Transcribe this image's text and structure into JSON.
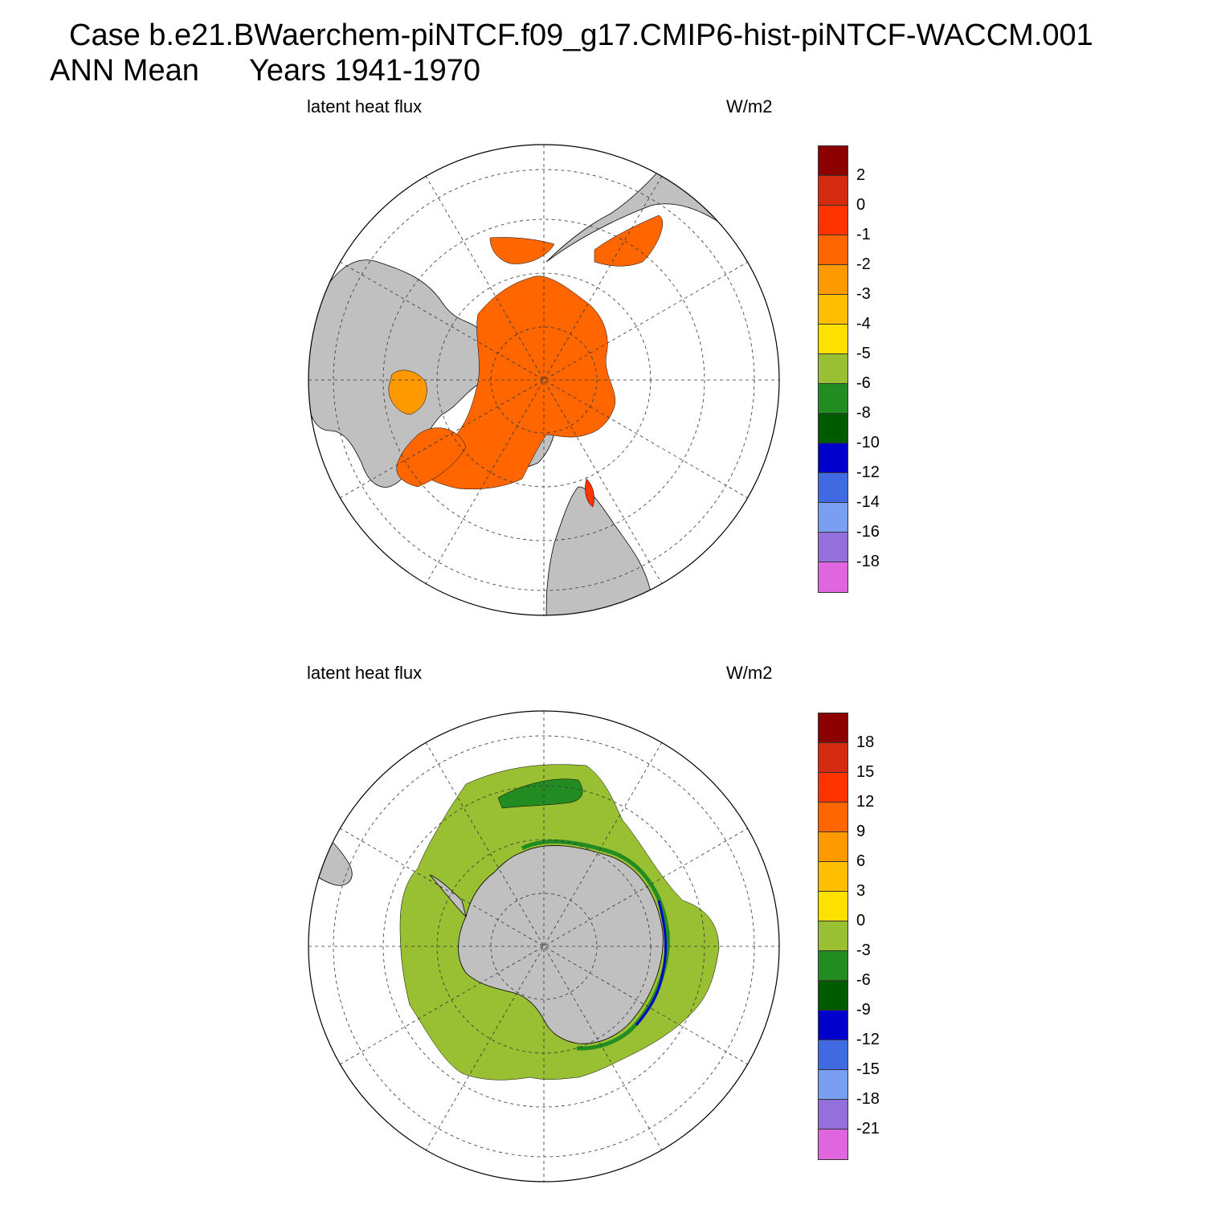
{
  "header": {
    "case_line": "Case b.e21.BWaerchem-piNTCF.f09_g17.CMIP6-hist-piNTCF-WACCM.001",
    "season": "ANN Mean",
    "years": "Years 1941-1970"
  },
  "panels": [
    {
      "id": "north",
      "variable": "latent heat flux",
      "units": "W/m2",
      "hemisphere": "north-polar-stereographic",
      "land_color": "#c0c0c0",
      "colorbar": {
        "colors": [
          "#8b0000",
          "#d42a10",
          "#ff3300",
          "#ff6600",
          "#ff9900",
          "#ffbf00",
          "#ffe000",
          "#99bf33",
          "#228b22",
          "#005a00",
          "#0000cc",
          "#4169e1",
          "#7a9ff0",
          "#9370db",
          "#e066e0"
        ],
        "labels": [
          "2",
          "0",
          "-1",
          "-2",
          "-3",
          "-4",
          "-5",
          "-6",
          "-8",
          "-10",
          "-12",
          "-14",
          "-16",
          "-18"
        ]
      }
    },
    {
      "id": "south",
      "variable": "latent heat flux",
      "units": "W/m2",
      "hemisphere": "south-polar-stereographic",
      "land_color": "#c0c0c0",
      "colorbar": {
        "colors": [
          "#8b0000",
          "#d42a10",
          "#ff3300",
          "#ff6600",
          "#ff9900",
          "#ffbf00",
          "#ffe000",
          "#99bf33",
          "#228b22",
          "#005a00",
          "#0000cc",
          "#4169e1",
          "#7a9ff0",
          "#9370db",
          "#e066e0"
        ],
        "labels": [
          "18",
          "15",
          "12",
          "9",
          "6",
          "3",
          "0",
          "-3",
          "-6",
          "-9",
          "-12",
          "-15",
          "-18",
          "-21"
        ]
      }
    }
  ]
}
